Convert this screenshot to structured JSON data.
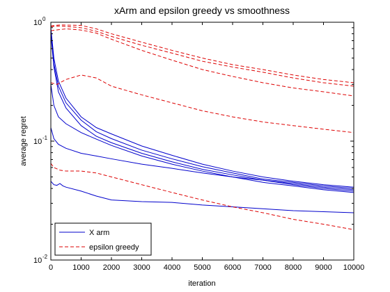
{
  "chart_data": {
    "type": "line",
    "title": "xArm and epsilon greedy vs smoothness",
    "xlabel": "iteration",
    "ylabel": "average regret",
    "xlim": [
      0,
      10000
    ],
    "ylim": [
      0.01,
      1
    ],
    "yscale": "log",
    "grid": false,
    "legend_position": "bottom-left",
    "x_ticks": [
      "0",
      "1000",
      "2000",
      "3000",
      "4000",
      "5000",
      "6000",
      "7000",
      "8000",
      "9000",
      "10000"
    ],
    "y_ticks": [
      {
        "base": "10",
        "exp": "0"
      },
      {
        "base": "10",
        "exp": "-1"
      },
      {
        "base": "10",
        "exp": "-2"
      }
    ],
    "series": [
      {
        "name": "X arm",
        "color": "#0000cc",
        "dash": "solid",
        "curves": [
          [
            [
              0,
              0.9
            ],
            [
              100,
              0.5
            ],
            [
              250,
              0.32
            ],
            [
              500,
              0.23
            ],
            [
              1000,
              0.16
            ],
            [
              1500,
              0.13
            ],
            [
              2000,
              0.115
            ],
            [
              3000,
              0.091
            ],
            [
              4000,
              0.076
            ],
            [
              5000,
              0.064
            ],
            [
              6000,
              0.056
            ],
            [
              7000,
              0.05
            ],
            [
              8000,
              0.046
            ],
            [
              9000,
              0.043
            ],
            [
              10000,
              0.041
            ]
          ],
          [
            [
              0,
              0.85
            ],
            [
              100,
              0.45
            ],
            [
              250,
              0.29
            ],
            [
              500,
              0.21
            ],
            [
              1000,
              0.15
            ],
            [
              1500,
              0.12
            ],
            [
              2000,
              0.105
            ],
            [
              3000,
              0.084
            ],
            [
              4000,
              0.071
            ],
            [
              5000,
              0.061
            ],
            [
              6000,
              0.054
            ],
            [
              7000,
              0.048
            ],
            [
              8000,
              0.045
            ],
            [
              9000,
              0.042
            ],
            [
              10000,
              0.04
            ]
          ],
          [
            [
              0,
              0.8
            ],
            [
              100,
              0.42
            ],
            [
              250,
              0.26
            ],
            [
              500,
              0.19
            ],
            [
              1000,
              0.135
            ],
            [
              1500,
              0.11
            ],
            [
              2000,
              0.097
            ],
            [
              3000,
              0.079
            ],
            [
              4000,
              0.067
            ],
            [
              5000,
              0.058
            ],
            [
              6000,
              0.052
            ],
            [
              7000,
              0.047
            ],
            [
              8000,
              0.043
            ],
            [
              9000,
              0.04
            ],
            [
              10000,
              0.038
            ]
          ],
          [
            [
              0,
              0.3
            ],
            [
              100,
              0.2
            ],
            [
              250,
              0.16
            ],
            [
              500,
              0.14
            ],
            [
              1000,
              0.118
            ],
            [
              1500,
              0.104
            ],
            [
              2000,
              0.092
            ],
            [
              3000,
              0.075
            ],
            [
              4000,
              0.064
            ],
            [
              5000,
              0.056
            ],
            [
              6000,
              0.05
            ],
            [
              7000,
              0.045
            ],
            [
              8000,
              0.042
            ],
            [
              9000,
              0.039
            ],
            [
              10000,
              0.037
            ]
          ],
          [
            [
              0,
              0.13
            ],
            [
              100,
              0.105
            ],
            [
              250,
              0.094
            ],
            [
              500,
              0.087
            ],
            [
              1000,
              0.079
            ],
            [
              1500,
              0.075
            ],
            [
              2000,
              0.071
            ],
            [
              3000,
              0.064
            ],
            [
              4000,
              0.059
            ],
            [
              5000,
              0.054
            ],
            [
              6000,
              0.05
            ],
            [
              7000,
              0.047
            ],
            [
              8000,
              0.044
            ],
            [
              9000,
              0.041
            ],
            [
              10000,
              0.039
            ]
          ],
          [
            [
              0,
              0.046
            ],
            [
              100,
              0.043
            ],
            [
              200,
              0.0425
            ],
            [
              300,
              0.044
            ],
            [
              400,
              0.042
            ],
            [
              500,
              0.041
            ],
            [
              1000,
              0.038
            ],
            [
              1500,
              0.0345
            ],
            [
              2000,
              0.032
            ],
            [
              3000,
              0.031
            ],
            [
              4000,
              0.0305
            ],
            [
              5000,
              0.029
            ],
            [
              6000,
              0.028
            ],
            [
              7000,
              0.027
            ],
            [
              8000,
              0.026
            ],
            [
              9000,
              0.0255
            ],
            [
              10000,
              0.025
            ]
          ]
        ]
      },
      {
        "name": "epsilon greedy",
        "color": "#dd0000",
        "dash": "dashed",
        "curves": [
          [
            [
              0,
              0.93
            ],
            [
              300,
              0.95
            ],
            [
              1000,
              0.94
            ],
            [
              1500,
              0.88
            ],
            [
              2000,
              0.8
            ],
            [
              3000,
              0.68
            ],
            [
              4000,
              0.58
            ],
            [
              5000,
              0.5
            ],
            [
              6000,
              0.44
            ],
            [
              7000,
              0.4
            ],
            [
              8000,
              0.36
            ],
            [
              9000,
              0.33
            ],
            [
              10000,
              0.31
            ]
          ],
          [
            [
              0,
              0.92
            ],
            [
              300,
              0.93
            ],
            [
              1000,
              0.9
            ],
            [
              1500,
              0.84
            ],
            [
              2000,
              0.76
            ],
            [
              3000,
              0.64
            ],
            [
              4000,
              0.55
            ],
            [
              5000,
              0.47
            ],
            [
              6000,
              0.42
            ],
            [
              7000,
              0.38
            ],
            [
              8000,
              0.34
            ],
            [
              9000,
              0.31
            ],
            [
              10000,
              0.29
            ]
          ],
          [
            [
              0,
              0.85
            ],
            [
              500,
              0.88
            ],
            [
              1000,
              0.86
            ],
            [
              1500,
              0.81
            ],
            [
              2000,
              0.72
            ],
            [
              3000,
              0.58
            ],
            [
              4000,
              0.48
            ],
            [
              5000,
              0.4
            ],
            [
              6000,
              0.35
            ],
            [
              7000,
              0.31
            ],
            [
              8000,
              0.28
            ],
            [
              9000,
              0.26
            ],
            [
              10000,
              0.24
            ]
          ],
          [
            [
              0,
              0.31
            ],
            [
              200,
              0.3
            ],
            [
              500,
              0.33
            ],
            [
              1000,
              0.36
            ],
            [
              1500,
              0.34
            ],
            [
              2000,
              0.29
            ],
            [
              3000,
              0.245
            ],
            [
              4000,
              0.21
            ],
            [
              5000,
              0.18
            ],
            [
              6000,
              0.16
            ],
            [
              7000,
              0.145
            ],
            [
              8000,
              0.135
            ],
            [
              9000,
              0.126
            ],
            [
              10000,
              0.118
            ]
          ],
          [
            [
              0,
              0.065
            ],
            [
              100,
              0.06
            ],
            [
              300,
              0.057
            ],
            [
              500,
              0.056
            ],
            [
              1000,
              0.056
            ],
            [
              1500,
              0.054
            ],
            [
              2000,
              0.05
            ],
            [
              3000,
              0.043
            ],
            [
              4000,
              0.037
            ],
            [
              5000,
              0.032
            ],
            [
              6000,
              0.028
            ],
            [
              7000,
              0.025
            ],
            [
              8000,
              0.022
            ],
            [
              9000,
              0.02
            ],
            [
              10000,
              0.018
            ]
          ]
        ]
      }
    ]
  }
}
